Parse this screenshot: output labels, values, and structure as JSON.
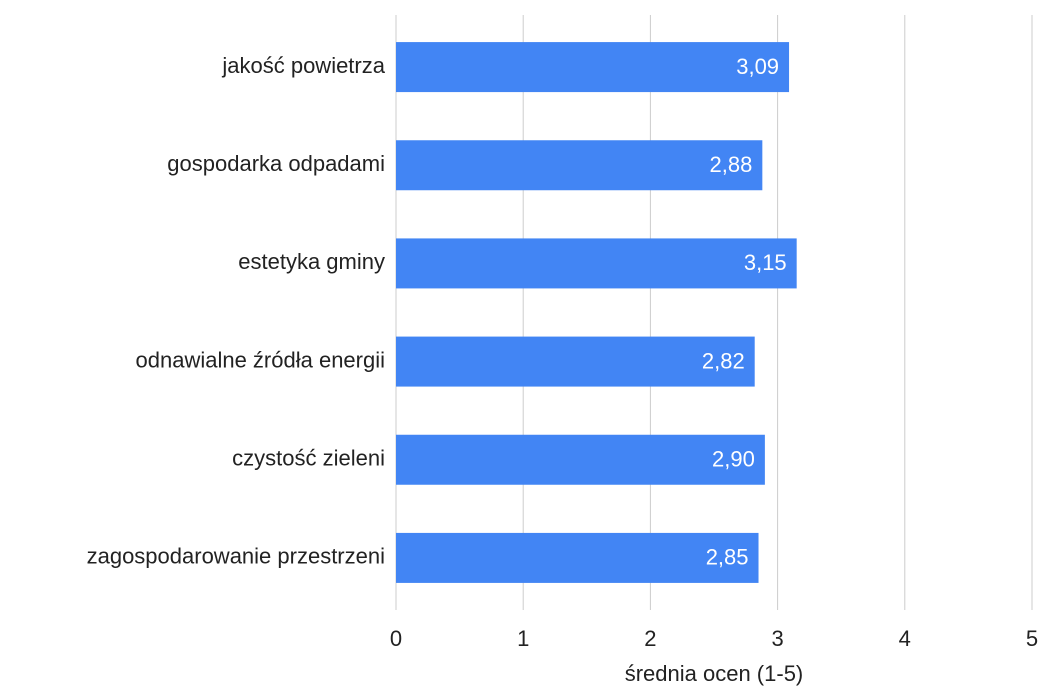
{
  "chart_data": {
    "type": "bar",
    "orientation": "horizontal",
    "categories": [
      "jakość powietrza",
      "gospodarka odpadami",
      "estetyka gminy",
      "odnawialne źródła energii",
      "czystość zieleni",
      "zagospodarowanie przestrzeni"
    ],
    "values": [
      3.09,
      2.88,
      3.15,
      2.82,
      2.9,
      2.85
    ],
    "value_labels": [
      "3,09",
      "2,88",
      "3,15",
      "2,82",
      "2,90",
      "2,85"
    ],
    "color": "#4285f4",
    "xlabel": "średnia ocen (1-5)",
    "xlim": [
      0,
      5
    ],
    "xticks": [
      0,
      1,
      2,
      3,
      4,
      5
    ],
    "grid": true
  }
}
